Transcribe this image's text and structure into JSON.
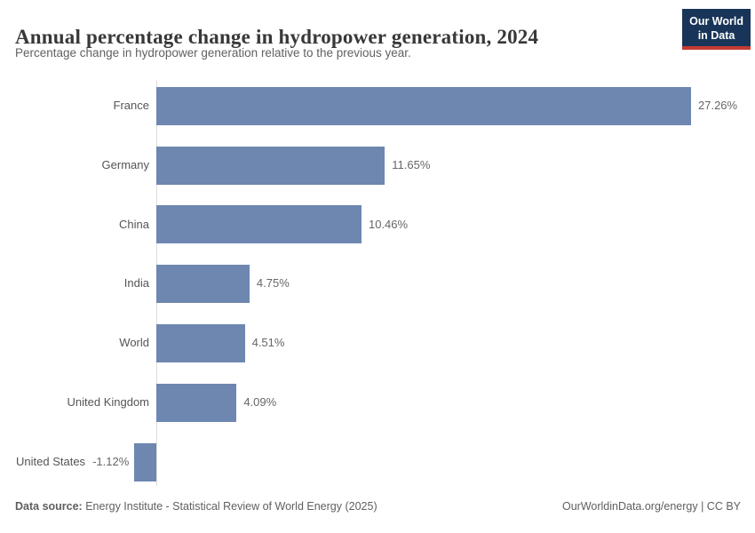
{
  "header": {
    "title": "Annual percentage change in hydropower generation, 2024",
    "subtitle": "Percentage change in hydropower generation relative to the previous year.",
    "logo": {
      "line1": "Our World",
      "line2": "in Data",
      "bg_color": "#183559",
      "accent_color": "#c73a31"
    }
  },
  "chart_data": {
    "type": "bar",
    "orientation": "horizontal",
    "title": "Annual percentage change in hydropower generation, 2024",
    "xlabel": "",
    "ylabel": "",
    "categories": [
      "France",
      "Germany",
      "China",
      "India",
      "World",
      "United Kingdom",
      "United States"
    ],
    "values": [
      27.26,
      11.65,
      10.46,
      4.75,
      4.51,
      4.09,
      -1.12
    ],
    "value_labels": [
      "27.26%",
      "11.65%",
      "10.46%",
      "4.75%",
      "4.51%",
      "4.09%",
      "-1.12%"
    ],
    "xlim": [
      -1.12,
      27.26
    ],
    "grid": false,
    "legend": false,
    "bar_color": "#6d87b0",
    "axis_color": "#dedede",
    "label_color": "#555555",
    "value_color": "#666666"
  },
  "footer": {
    "datasource_label": "Data source:",
    "datasource_text": "Energy Institute - Statistical Review of World Energy (2025)",
    "right_text": "OurWorldinData.org/energy | CC BY"
  }
}
